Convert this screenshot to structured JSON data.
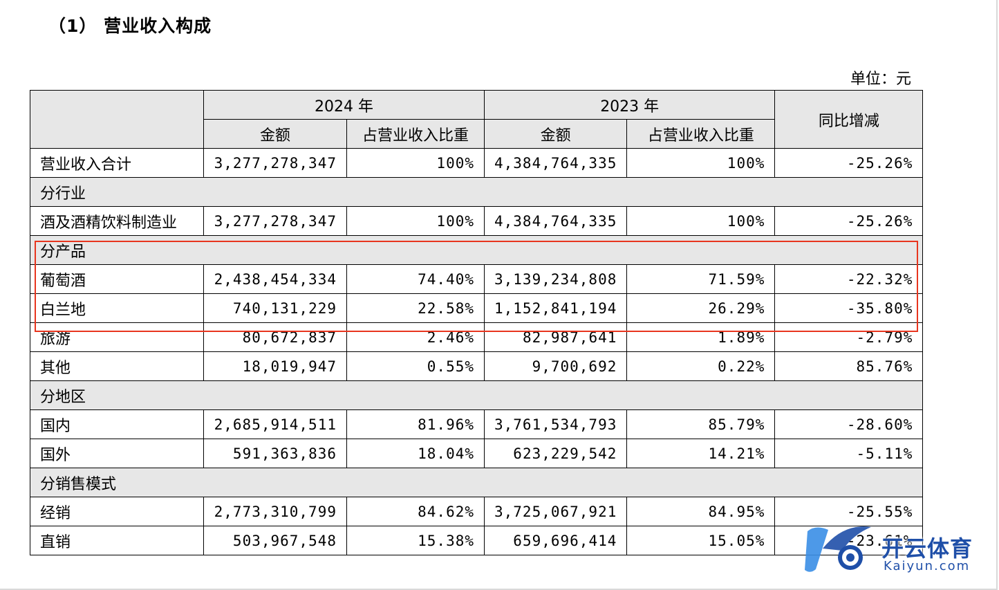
{
  "heading": "（1） 营业收入构成",
  "unit": "单位：元",
  "headers": {
    "y2024": "2024 年",
    "y2023": "2023 年",
    "yoy": "同比增减",
    "amount": "金额",
    "share": "占营业收入比重"
  },
  "rows": [
    {
      "type": "data",
      "label": "营业收入合计",
      "a2024": "3,277,278,347",
      "s2024": "100%",
      "a2023": "4,384,764,335",
      "s2023": "100%",
      "yoy": "-25.26%"
    },
    {
      "type": "section",
      "label": "分行业"
    },
    {
      "type": "data",
      "label": "酒及酒精饮料制造业",
      "a2024": "3,277,278,347",
      "s2024": "100%",
      "a2023": "4,384,764,335",
      "s2023": "100%",
      "yoy": "-25.26%"
    },
    {
      "type": "section",
      "label": "分产品"
    },
    {
      "type": "data",
      "label": "葡萄酒",
      "a2024": "2,438,454,334",
      "s2024": "74.40%",
      "a2023": "3,139,234,808",
      "s2023": "71.59%",
      "yoy": "-22.32%"
    },
    {
      "type": "data",
      "label": "白兰地",
      "a2024": "740,131,229",
      "s2024": "22.58%",
      "a2023": "1,152,841,194",
      "s2023": "26.29%",
      "yoy": "-35.80%"
    },
    {
      "type": "data",
      "label": "旅游",
      "a2024": "80,672,837",
      "s2024": "2.46%",
      "a2023": "82,987,641",
      "s2023": "1.89%",
      "yoy": "-2.79%"
    },
    {
      "type": "data",
      "label": "其他",
      "a2024": "18,019,947",
      "s2024": "0.55%",
      "a2023": "9,700,692",
      "s2023": "0.22%",
      "yoy": "85.76%"
    },
    {
      "type": "section",
      "label": "分地区"
    },
    {
      "type": "data",
      "label": "国内",
      "a2024": "2,685,914,511",
      "s2024": "81.96%",
      "a2023": "3,761,534,793",
      "s2023": "85.79%",
      "yoy": "-28.60%"
    },
    {
      "type": "data",
      "label": "国外",
      "a2024": "591,363,836",
      "s2024": "18.04%",
      "a2023": "623,229,542",
      "s2023": "14.21%",
      "yoy": "-5.11%"
    },
    {
      "type": "section",
      "label": "分销售模式"
    },
    {
      "type": "data",
      "label": "经销",
      "a2024": "2,773,310,799",
      "s2024": "84.62%",
      "a2023": "3,725,067,921",
      "s2023": "84.95%",
      "yoy": "-25.55%"
    },
    {
      "type": "data",
      "label": "直销",
      "a2024": "503,967,548",
      "s2024": "15.38%",
      "a2023": "659,696,414",
      "s2023": "15.05%",
      "yoy": "-23.61%"
    }
  ],
  "watermark": {
    "brand": "开云体育",
    "url": "Kaiyun.com"
  },
  "colors": {
    "highlight": "#e8351e",
    "header_bg": "#e7e7e7",
    "watermark": "#1f4fa8"
  }
}
